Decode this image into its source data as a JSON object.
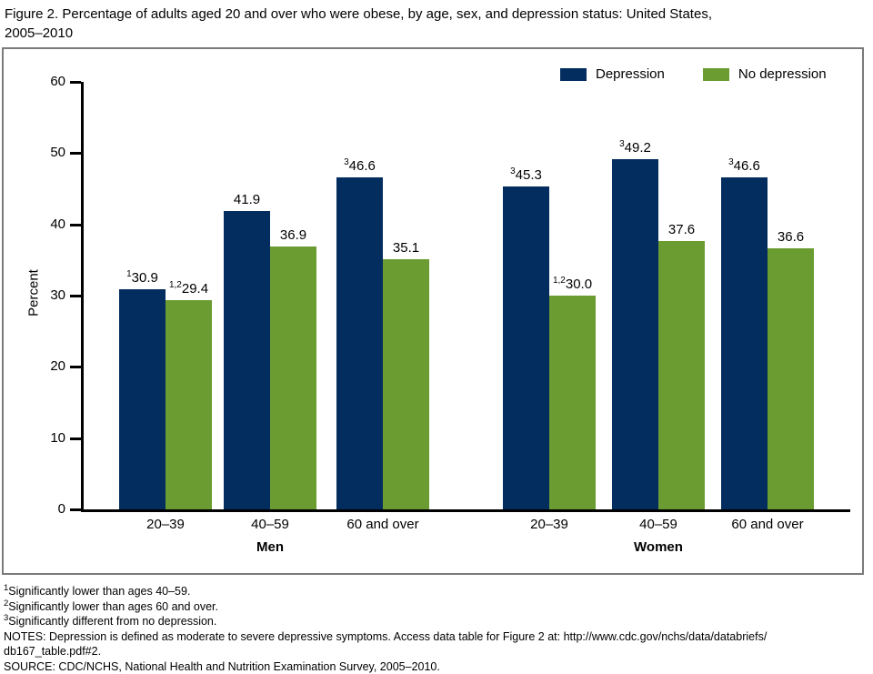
{
  "figure_title": {
    "line1": "Figure 2. Percentage of adults aged 20 and over who were obese, by age, sex, and depression status: United States,",
    "line2": "2005–2010"
  },
  "colors": {
    "depression": "#022d5e",
    "no_depression": "#6b9c31",
    "axis": "#000000",
    "chart_border": "#7a7a7a"
  },
  "legend": [
    {
      "label": "Depression",
      "color": "#022d5e"
    },
    {
      "label": "No depression",
      "color": "#6b9c31"
    }
  ],
  "chart_data": {
    "type": "bar",
    "title": "Figure 2. Percentage of adults aged 20 and over who were obese, by age, sex, and depression status: United States, 2005–2010",
    "xlabel": "",
    "ylabel": "Percent",
    "ylim": [
      0,
      60
    ],
    "yticks": [
      0,
      10,
      20,
      30,
      40,
      50,
      60
    ],
    "grid": false,
    "legend_position": "top-right",
    "categories": [
      "Men 20–39",
      "Men 40–59",
      "Men 60 and over",
      "Women 20–39",
      "Women 40–59",
      "Women 60 and over"
    ],
    "series": [
      {
        "name": "Depression",
        "values": [
          30.9,
          41.9,
          46.6,
          45.3,
          49.2,
          46.6
        ]
      },
      {
        "name": "No depression",
        "values": [
          29.4,
          36.9,
          35.1,
          30.0,
          37.6,
          36.6
        ]
      }
    ],
    "clusters": [
      {
        "label": "Men",
        "groups": [
          {
            "category": "20–39",
            "depression": {
              "value": 30.9,
              "label": "30.9",
              "sup": "1"
            },
            "no_depression": {
              "value": 29.4,
              "label": "29.4",
              "sup": "1,2"
            }
          },
          {
            "category": "40–59",
            "depression": {
              "value": 41.9,
              "label": "41.9",
              "sup": ""
            },
            "no_depression": {
              "value": 36.9,
              "label": "36.9",
              "sup": ""
            }
          },
          {
            "category": "60 and over",
            "depression": {
              "value": 46.6,
              "label": "46.6",
              "sup": "3"
            },
            "no_depression": {
              "value": 35.1,
              "label": "35.1",
              "sup": ""
            }
          }
        ]
      },
      {
        "label": "Women",
        "groups": [
          {
            "category": "20–39",
            "depression": {
              "value": 45.3,
              "label": "45.3",
              "sup": "3"
            },
            "no_depression": {
              "value": 30.0,
              "label": "30.0",
              "sup": "1,2"
            }
          },
          {
            "category": "40–59",
            "depression": {
              "value": 49.2,
              "label": "49.2",
              "sup": "3"
            },
            "no_depression": {
              "value": 37.6,
              "label": "37.6",
              "sup": ""
            }
          },
          {
            "category": "60 and over",
            "depression": {
              "value": 46.6,
              "label": "46.6",
              "sup": "3"
            },
            "no_depression": {
              "value": 36.6,
              "label": "36.6",
              "sup": ""
            }
          }
        ]
      }
    ]
  },
  "footnotes": [
    {
      "sup": "1",
      "text": "Significantly lower than ages 40–59."
    },
    {
      "sup": "2",
      "text": "Significantly lower than ages 60 and over."
    },
    {
      "sup": "3",
      "text": "Significantly different from no depression."
    }
  ],
  "notes_line1": "NOTES: Depression is defined as moderate to severe depressive symptoms. Access data table for Figure 2 at: http://www.cdc.gov/nchs/data/databriefs/",
  "notes_line2": "db167_table.pdf#2.",
  "source": "SOURCE: CDC/NCHS, National Health and Nutrition Examination Survey, 2005–2010."
}
